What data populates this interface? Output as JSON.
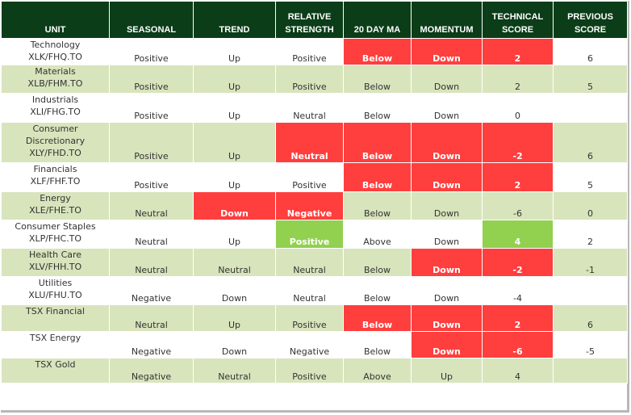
{
  "colors": {
    "header_bg": "#0b3d18",
    "band_green": "#d8e4bc",
    "alert_red": "#ff3e3e",
    "good_green": "#92d050"
  },
  "headers": {
    "unit": "UNIT",
    "seasonal": "SEASONAL",
    "trend": "TREND",
    "relative_strength": [
      "RELATIVE",
      "STRENGTH"
    ],
    "ma20": "20 DAY MA",
    "momentum": "MOMENTUM",
    "technical_score": [
      "TECHNICAL",
      "SCORE"
    ],
    "previous_score": [
      "PREVIOUS",
      "SCORE"
    ]
  },
  "rows": [
    {
      "unit": [
        "Technology",
        "XLK/FHQ.TO"
      ],
      "seasonal": "Positive",
      "trend": "Up",
      "relative_strength": "Positive",
      "ma20": "Below",
      "momentum": "Down",
      "technical_score": "2",
      "previous_score": "6"
    },
    {
      "unit": [
        "Materials",
        "XLB/FHM.TO"
      ],
      "seasonal": "Positive",
      "trend": "Up",
      "relative_strength": "Positive",
      "ma20": "Below",
      "momentum": "Down",
      "technical_score": "2",
      "previous_score": "5"
    },
    {
      "unit": [
        "Industrials",
        "XLI/FHG.TO"
      ],
      "seasonal": "Positive",
      "trend": "Up",
      "relative_strength": "Neutral",
      "ma20": "Below",
      "momentum": "Down",
      "technical_score": "0",
      "previous_score": ""
    },
    {
      "unit": [
        "Consumer",
        "Discretionary",
        "XLY/FHD.TO"
      ],
      "seasonal": "Positive",
      "trend": "Up",
      "relative_strength": "Neutral",
      "ma20": "Below",
      "momentum": "Down",
      "technical_score": "-2",
      "previous_score": "6"
    },
    {
      "unit": [
        "Financials",
        "XLF/FHF.TO"
      ],
      "seasonal": "Positive",
      "trend": "Up",
      "relative_strength": "Positive",
      "ma20": "Below",
      "momentum": "Down",
      "technical_score": "2",
      "previous_score": "5"
    },
    {
      "unit": [
        "Energy",
        "XLE/FHE.TO"
      ],
      "seasonal": "Neutral",
      "trend": "Down",
      "relative_strength": "Negative",
      "ma20": "Below",
      "momentum": "Down",
      "technical_score": "-6",
      "previous_score": "0"
    },
    {
      "unit": [
        "Consumer Staples",
        "XLP/FHC.TO"
      ],
      "seasonal": "Neutral",
      "trend": "Up",
      "relative_strength": "Positive",
      "ma20": "Above",
      "momentum": "Down",
      "technical_score": "4",
      "previous_score": "2"
    },
    {
      "unit": [
        "Health Care",
        "XLV/FHH.TO"
      ],
      "seasonal": "Neutral",
      "trend": "Neutral",
      "relative_strength": "Neutral",
      "ma20": "Below",
      "momentum": "Down",
      "technical_score": "-2",
      "previous_score": "-1"
    },
    {
      "unit": [
        "Utilities",
        "XLU/FHU.TO"
      ],
      "seasonal": "Negative",
      "trend": "Down",
      "relative_strength": "Neutral",
      "ma20": "Below",
      "momentum": "Down",
      "technical_score": "-4",
      "previous_score": ""
    },
    {
      "unit": [
        "TSX Financial"
      ],
      "seasonal": "Neutral",
      "trend": "Up",
      "relative_strength": "Positive",
      "ma20": "Below",
      "momentum": "Down",
      "technical_score": "2",
      "previous_score": "6"
    },
    {
      "unit": [
        "TSX Energy"
      ],
      "seasonal": "Negative",
      "trend": "Down",
      "relative_strength": "Negative",
      "ma20": "Below",
      "momentum": "Down",
      "technical_score": "-6",
      "previous_score": "-5"
    },
    {
      "unit": [
        "TSX Gold"
      ],
      "seasonal": "Negative",
      "trend": "Neutral",
      "relative_strength": "Positive",
      "ma20": "Above",
      "momentum": "Up",
      "technical_score": "4",
      "previous_score": ""
    }
  ],
  "highlights": {
    "red": [
      "0.ma20",
      "0.momentum",
      "0.technical_score",
      "3.relative_strength",
      "3.ma20",
      "3.momentum",
      "3.technical_score",
      "4.ma20",
      "4.momentum",
      "4.technical_score",
      "5.trend",
      "5.relative_strength",
      "7.momentum",
      "7.technical_score",
      "9.ma20",
      "9.momentum",
      "9.technical_score",
      "10.momentum",
      "10.technical_score"
    ],
    "green": [
      "6.relative_strength",
      "6.technical_score"
    ]
  }
}
